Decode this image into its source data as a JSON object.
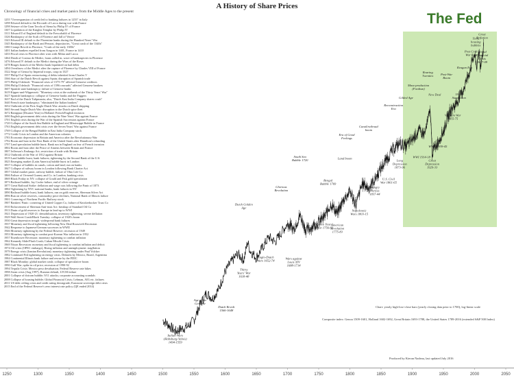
{
  "chart_data": {
    "type": "line",
    "title": "A History of Share Prices",
    "subtitle": "Chronology of financial crises and market panics from the Middle Ages to the present",
    "xlim": [
      1250,
      2050
    ],
    "x_ticks": [
      "1250",
      "1300",
      "1350",
      "1400",
      "1450",
      "1500",
      "1550",
      "1600",
      "1650",
      "1700",
      "1750",
      "1800",
      "1850",
      "1900",
      "1950",
      "2000",
      "2050"
    ],
    "log_scale": true,
    "grid": false,
    "fed_label": "The Fed",
    "fed_start_year": 1913,
    "series": [
      {
        "x": [
          1500,
          1510,
          1520,
          1530,
          1540,
          1550,
          1560,
          1570,
          1580,
          1590,
          1600,
          1610,
          1620,
          1630,
          1636,
          1640,
          1650,
          1660,
          1670,
          1680,
          1690,
          1700,
          1710,
          1720,
          1730,
          1740,
          1750,
          1760,
          1770,
          1780,
          1790,
          1800,
          1810,
          1820,
          1830,
          1840,
          1850,
          1860,
          1870,
          1880,
          1890,
          1900,
          1910,
          1920,
          1929,
          1932,
          1940,
          1950,
          1960,
          1970,
          1980,
          1990,
          2000,
          2003,
          2007,
          2009,
          2015
        ],
        "y": [
          4,
          3.5,
          3,
          3.2,
          3.4,
          4,
          6,
          8,
          7,
          9,
          14,
          18,
          22,
          19,
          30,
          24,
          20,
          26,
          34,
          30,
          38,
          48,
          42,
          60,
          40,
          45,
          50,
          58,
          80,
          62,
          90,
          110,
          78,
          135,
          120,
          150,
          200,
          260,
          330,
          380,
          350,
          420,
          520,
          480,
          900,
          300,
          380,
          520,
          850,
          1050,
          1400,
          2200,
          3800,
          2600,
          4400,
          2400,
          5200
        ]
      }
    ],
    "chronology": [
      "1255 \"Overexpansion of credit led to banking failures in 1255\" in Italy",
      "1298 Edward default to the Riccardi of Lucca during war with France",
      "1298 Seizure of the Gran Tavola of Siena by Philip IV of France",
      "1307 Liquidation of the Knights Templar by Philip IV",
      "1311 Edward II of England default to the Frescobaldi of Florence",
      "1326 Bankruptcy of the Scali of Florence and fall of Venice",
      "1343 Edward III default to the Florentine banks during the Hundred Years' War",
      "1345 Bankruptcy of the Bardi and Peruzzi, depositories, \"Great crash of the 1340s\"",
      "1380 Ciompi Revolt in Florence, \"Crash of the early 1380s\"",
      "1401 Italian bankers expelled from Aragon in 1401, France in 1410",
      "1433 Fiscal crisis in Florence after wars with Milan and Lucca",
      "1464 Death of Cosimo de Medici, loans called in, wave of bankruptcies in Florence",
      "1476 Edward IV default to the Medici during the Wars of the Roses",
      "1478 Bruges branch of the Medici bank liquidated on bad debts",
      "1494 Overthrow of the Medici after the capture of Florence by Charles VIII of France",
      "1522 Siege of Genoa by Imperial troops, coup in 1527",
      "1557 Philip II of Spain restructuring of debts inherited from Charles V",
      "1566 Start of the Dutch Revolt against Spain; disruption of Spanish trade",
      "1575 Philip II default: \"Financial crisis of 1575-79\" affected Genoese creditors",
      "1596 Philip II default: \"Financial crisis of 1596 onwards\" affected Genoese bankers",
      "1607 Spanish state bankruptcy; failure of Genoese banks",
      "1619 Kipper-und-Wipperzeit: \"Monetary crisis at the outbreak of the Thirty Years' War\"",
      "1627 Spanish bankruptcy; collapse of Genoese banks and the Fuggers",
      "1637 End of the Dutch Tulipmania; also, \"Dutch East India Company shares crash\"",
      "1640 French state bankruptcy; \"eliminated the Italian bankers\"",
      "1652 Outbreak of the First Anglo-Dutch War: attacks on Dutch shipping",
      "1665 Second Anglo-Dutch War: disruption to the Dutch spice fleet",
      "1672 Rampjaar (Disaster Year) in Holland: French/English invasion",
      "1690 English government debt crisis during the Nine Years' War against France",
      "1701 English crisis during the War of the Spanish Succession against France",
      "1720 Collapse of the South Sea Bubble in England and Mississippi Bubble in France",
      "1763 English government debt crisis over the Seven Years' War against France",
      "1769 Collapse of the Bengal Bubble in East India Company stock",
      "1772 Credit Crisis in London and the American colonies",
      "1783 Economic depression in Britain and America after the Revolutionary War",
      "1792 Boom and bust in the First Bank of the United States after Hamilton's refunding",
      "1797 Land speculation bubble burst. Bank run in England on fear of French invasion",
      "1802 Boom and bust after the Peace of Amiens between Britain and France",
      "1807 Jefferson's Embargo Act; restriction of trade with Britain",
      "1812 Outbreak of the War of 1812 against Britain",
      "1819 Land bubble burst, bank failures; tightening by the Second Bank of the U.S.",
      "1825 Emerging market (Latin America) bubble burst in London",
      "1837 Collapse of bubbles in canals, cotton and land; run on banks",
      "1847 Collapse of railway boom in London following Bank Charter Act",
      "1857 Global market panic, railway bubble, failure of Ohio Life Co",
      "1866 Failure of Overend Gurney and Co. in London, banking crisis",
      "1869 Black Friday in NY: collapse of Gould and Fisk gold speculation",
      "1873 Railroad bubble, Jay Cooke failure, end of silver coinage",
      "1877 Great Railroad Strike: deflation and wage cuts following the Panic of 1873",
      "1884 Tightening by NYC national banks, bank failures in NY",
      "1890 Railroad bubble burst, bank failures, run on gold reserves, Sherman Silver Act",
      "1896 Run on silver reserves, commodity price declines, National Bank of Illinois failure",
      "1901 Cornering of Northern Pacific Railway stock",
      "1907 Bankers' Panic: cornering of United Copper Co, failure of Knickerbocker Trust Co",
      "1910 Enforcement of Sherman Anti-trust Act: breakup of Standard Oil Co",
      "1913 Drain of gold reserves to Europe in lead-up to WWI",
      "1921 Depression of 1920-21: demobilisation, inventory tightening, severe deflation",
      "1929 Wall Street Crash/Black Tuesday: collapse of 1920's boom",
      "1930 Great depression trough: widespread bank failures",
      "1937 Monetary and fiscal tightening following New Deal Roosevelt Recession",
      "1942 Response to Japanese/German successes in WWII",
      "1946 Monetary tightening by the Federal Reserve; recession of 1949",
      "1953 Monetary tightening to combat post-Korean War inflation in 1952",
      "1957 Eisenhower Recession: monetary tightening to combat inflation",
      "1962 Kennedy Slide/Flash Crash; Cuban Missile Crisis",
      "1969 Nixon Recession: monetary and fiscal tightening to combat inflation and deficit",
      "1974 Oil crisis (OPEC embargo), Rising inflation and unemployment: stagflation",
      "1979 Energy crisis (Iranian Revolution); monetary tightening under Paul Volcker",
      "1982 Continued Fed tightening on energy crisis. Defaults by Mexico, Brazil, Argentina",
      "1984 Continental Illinois bank failure and rescue by the FDIC",
      "1987 Black Monday: global market crash; collapse of speculative boom",
      "1990 Gulf War; spike in oil price; recession of 1990-92",
      "1994 Tequila Crisis: Mexico peso devaluation; Federal Reserve rate hikes",
      "1998 Asian crisis (Aug 1997), Russian default, LTCM failure",
      "2001 Collapse of dotcom bubble; 9/11 attacks; corporate accounting scandals",
      "2008 Collapse of housing bubble; Global Financial Crisis; Lehman, AIG etc. failures",
      "2011 US debt ceiling crisis and credit rating downgrade; Eurozone sovereign debt crisis",
      "2015 End of the Federal Reserve's zero interest rate policy (QE ended 2014)"
    ],
    "annotations": [
      {
        "text": "Italian Wars (Habsburg-Valois) 1494-1559",
        "x": 1520,
        "y": 2.2
      },
      {
        "text": "Age of the Genoese",
        "x": 1560,
        "y": 6
      },
      {
        "text": "Dutch Golden Age",
        "x": 1630,
        "y": 70
      },
      {
        "text": "Thirty Years' War 1618-48",
        "x": 1630,
        "y": 12
      },
      {
        "text": "Dutch Revolt 1566-1648",
        "x": 1602,
        "y": 5
      },
      {
        "text": "Glorious Revolution",
        "x": 1690,
        "y": 110
      },
      {
        "text": "Anglo-Dutch Wars 1652-74",
        "x": 1665,
        "y": 18
      },
      {
        "text": "Wars against Louis XIV 1688-1714",
        "x": 1710,
        "y": 16
      },
      {
        "text": "South Sea Bubble 1720",
        "x": 1720,
        "y": 240
      },
      {
        "text": "Bengal Bubble 1769",
        "x": 1765,
        "y": 130
      },
      {
        "text": "Seven Years' War 1756-63",
        "x": 1760,
        "y": 42
      },
      {
        "text": "American Revolution 1775-83",
        "x": 1780,
        "y": 38
      },
      {
        "text": "Era of Good Feelings",
        "x": 1795,
        "y": 420
      },
      {
        "text": "Land boom",
        "x": 1792,
        "y": 250
      },
      {
        "text": "Canal/railroad boom",
        "x": 1830,
        "y": 520
      },
      {
        "text": "Napoleonic Wars 1803-15",
        "x": 1815,
        "y": 60
      },
      {
        "text": "Hungry Forties 1837-44",
        "x": 1840,
        "y": 100
      },
      {
        "text": "Long Depression 1873-96",
        "x": 1880,
        "y": 200
      },
      {
        "text": "U.S. Civil War 1861-65",
        "x": 1862,
        "y": 135
      },
      {
        "text": "Reconstruction Era",
        "x": 1870,
        "y": 900
      },
      {
        "text": "Gilded Age",
        "x": 1890,
        "y": 1200
      },
      {
        "text": "Mass-production (Fordism)",
        "x": 1910,
        "y": 1500
      },
      {
        "text": "Roaring Twenties",
        "x": 1925,
        "y": 2100
      },
      {
        "text": "WWI 1914-18",
        "x": 1915,
        "y": 260
      },
      {
        "text": "WWII 1939-45",
        "x": 1941,
        "y": 340
      },
      {
        "text": "Great Depression 1929-33",
        "x": 1932,
        "y": 200
      },
      {
        "text": "New Deal",
        "x": 1936,
        "y": 1300
      },
      {
        "text": "Post-War Boom",
        "x": 1955,
        "y": 2000
      },
      {
        "text": "Vietnam War 1955-75",
        "x": 1965,
        "y": 700
      },
      {
        "text": "1970s Stagflation",
        "x": 1975,
        "y": 1200
      },
      {
        "text": "Reagan Era",
        "x": 1984,
        "y": 2600
      },
      {
        "text": "Post Cold War Era",
        "x": 1994,
        "y": 3600
      },
      {
        "text": "Tech, housing bubbles",
        "x": 2002,
        "y": 4600
      },
      {
        "text": "Great Reflation",
        "x": 2012,
        "y": 5600
      },
      {
        "text": "Global Financial Crisis 2007-09",
        "x": 2012,
        "y": 3000
      }
    ],
    "notes": [
      "Chart: yearly high-low-close bars (yearly closing data prior to 1700), log-linear scale",
      "Composite index: Genoa 1509-1601, Holland 1602-1692, Great Britain 1693-1788, the United States 1789-2016 (extended S&P 500 Index)",
      "Produced by Kieran Nadeau, last updated July 2016"
    ]
  }
}
